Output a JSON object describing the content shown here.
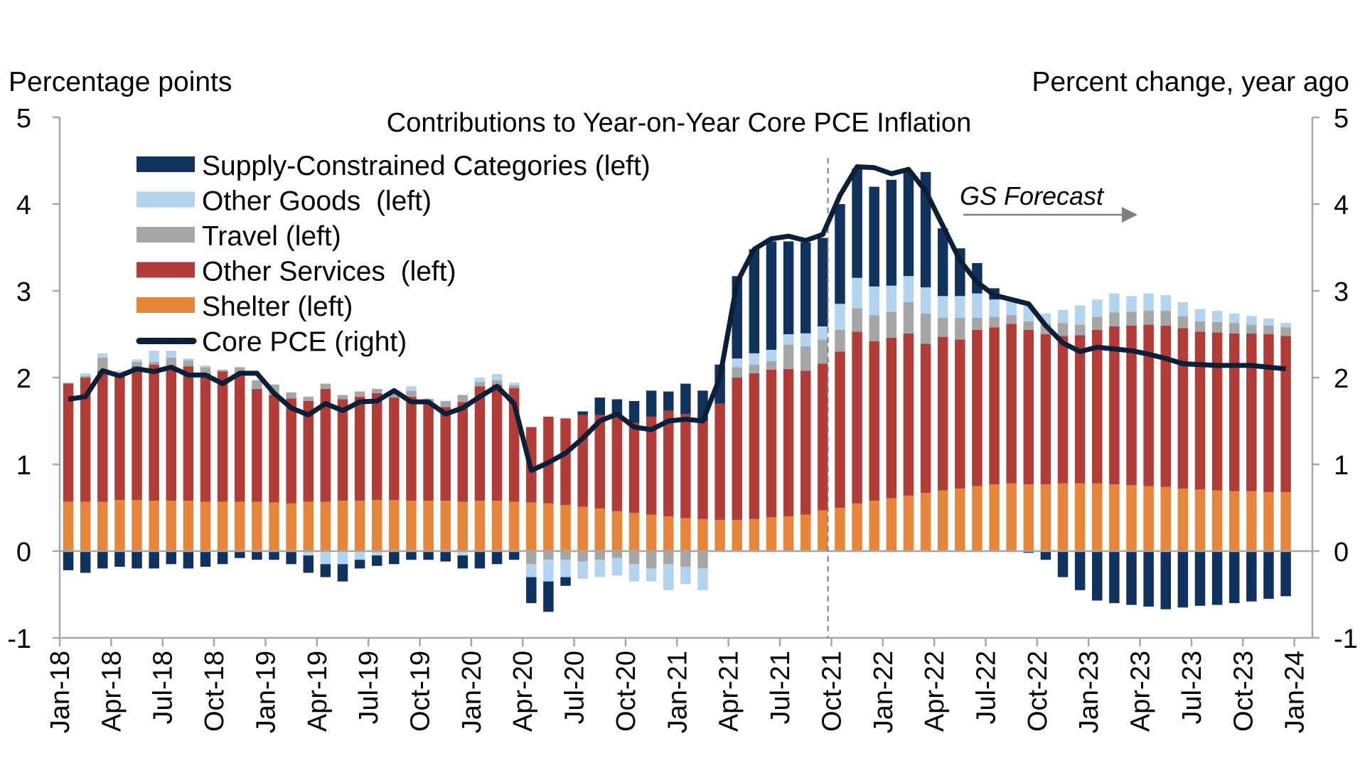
{
  "chart_data": {
    "type": "bar",
    "title": "Contributions to Year-on-Year Core PCE Inflation",
    "ylabel_left": "Percentage points",
    "ylabel_right": "Percent change, year ago",
    "ylim": [
      -1,
      5
    ],
    "yticks": [
      -1,
      0,
      1,
      2,
      3,
      4,
      5
    ],
    "ytick_labels": [
      "-1",
      "0",
      "1",
      "2",
      "3",
      "4",
      "5"
    ],
    "xtick_labels": [
      "Jan-18",
      "Apr-18",
      "Jul-18",
      "Oct-18",
      "Jan-19",
      "Apr-19",
      "Jul-19",
      "Oct-19",
      "Jan-20",
      "Apr-20",
      "Jul-20",
      "Oct-20",
      "Jan-21",
      "Apr-21",
      "Jul-21",
      "Oct-21",
      "Jan-22",
      "Apr-22",
      "Jul-22",
      "Oct-22",
      "Jan-23",
      "Apr-23",
      "Jul-23",
      "Oct-23",
      "Jan-24"
    ],
    "x_start": "Jan-18",
    "x_frequency": "monthly",
    "forecast_label": "GS Forecast",
    "forecast_start": "Oct-21",
    "legend_position": "top-left",
    "grid": false,
    "series": [
      {
        "name": "Supply-Constrained Categories (left)",
        "type": "bar",
        "color": "#12325e",
        "values": [
          -0.22,
          -0.25,
          -0.2,
          -0.18,
          -0.2,
          -0.2,
          -0.15,
          -0.2,
          -0.18,
          -0.15,
          -0.08,
          -0.1,
          -0.1,
          -0.15,
          -0.2,
          -0.15,
          -0.2,
          -0.1,
          -0.12,
          -0.15,
          -0.1,
          -0.1,
          -0.12,
          -0.15,
          -0.2,
          -0.15,
          -0.1,
          -0.3,
          -0.35,
          -0.1,
          0.04,
          0.2,
          0.18,
          0.25,
          0.3,
          0.22,
          0.35,
          0.35,
          0.45,
          0.95,
          1.2,
          1.25,
          1.07,
          1.05,
          1.02,
          1.15,
          1.26,
          1.15,
          1.22,
          1.2,
          1.33,
          0.78,
          0.55,
          0.35,
          0.13,
          0.0,
          -0.02,
          -0.1,
          -0.3,
          -0.45,
          -0.57,
          -0.6,
          -0.62,
          -0.64,
          -0.67,
          -0.65,
          -0.63,
          -0.62,
          -0.6,
          -0.58,
          -0.55,
          -0.52
        ]
      },
      {
        "name": "Other Goods  (left)",
        "type": "bar",
        "color": "#b3d4ee",
        "values": [
          0,
          0.03,
          0.05,
          0.02,
          0.03,
          0.13,
          0.08,
          0.02,
          0.02,
          0,
          0,
          0,
          0,
          0,
          -0.05,
          -0.15,
          -0.15,
          -0.1,
          -0.05,
          0,
          0.05,
          0.01,
          0,
          -0.05,
          0.05,
          0.07,
          0.03,
          -0.15,
          -0.25,
          -0.2,
          -0.2,
          -0.2,
          -0.2,
          -0.2,
          -0.15,
          -0.3,
          -0.2,
          -0.25,
          0,
          0.1,
          0.13,
          0.13,
          0.12,
          0.15,
          0.15,
          0.3,
          0.35,
          0.33,
          0.3,
          0.3,
          0.3,
          0.25,
          0.25,
          0.28,
          0.2,
          0.18,
          0.18,
          0.12,
          0.15,
          0.22,
          0.2,
          0.22,
          0.18,
          0.2,
          0.18,
          0.16,
          0.14,
          0.13,
          0.11,
          0.1,
          0.08,
          0.05
        ]
      },
      {
        "name": "Travel (left)",
        "type": "bar",
        "color": "#a6a6a6",
        "values": [
          0.01,
          0.02,
          0.15,
          0.03,
          0.05,
          0.03,
          0.1,
          0.07,
          0.07,
          0.02,
          0.07,
          0.1,
          0.12,
          0.07,
          0.05,
          0.06,
          0.05,
          0.06,
          0.05,
          0.05,
          0.07,
          0.05,
          0.07,
          0.08,
          0.05,
          0.05,
          0.03,
          -0.15,
          -0.1,
          -0.1,
          -0.12,
          -0.1,
          -0.08,
          -0.15,
          -0.2,
          -0.15,
          -0.18,
          -0.2,
          0,
          0.12,
          0.1,
          0.1,
          0.28,
          0.28,
          0.28,
          0.25,
          0.27,
          0.3,
          0.3,
          0.36,
          0.35,
          0.22,
          0.25,
          0.14,
          0.12,
          0.1,
          0.1,
          0.12,
          0.15,
          0.12,
          0.15,
          0.16,
          0.16,
          0.16,
          0.17,
          0.14,
          0.12,
          0.12,
          0.12,
          0.1,
          0.1,
          0.1
        ]
      },
      {
        "name": "Other Services  (left)",
        "type": "bar",
        "color": "#b13c38",
        "values": [
          1.36,
          1.43,
          1.51,
          1.44,
          1.54,
          1.57,
          1.55,
          1.55,
          1.48,
          1.5,
          1.48,
          1.3,
          1.24,
          1.21,
          1.16,
          1.3,
          1.17,
          1.2,
          1.23,
          1.18,
          1.2,
          1.12,
          1.08,
          1.15,
          1.32,
          1.34,
          1.31,
          0.87,
          1.0,
          1.0,
          1.06,
          1.08,
          1.11,
          1.04,
          1.13,
          1.22,
          1.2,
          1.13,
          1.34,
          1.64,
          1.68,
          1.7,
          1.7,
          1.66,
          1.69,
          1.8,
          1.98,
          1.84,
          1.85,
          1.87,
          1.72,
          1.77,
          1.72,
          1.8,
          1.81,
          1.84,
          1.78,
          1.73,
          1.7,
          1.71,
          1.77,
          1.82,
          1.84,
          1.86,
          1.86,
          1.85,
          1.82,
          1.82,
          1.82,
          1.82,
          1.82,
          1.8
        ]
      },
      {
        "name": "Shelter (left)",
        "type": "bar",
        "color": "#e6853c",
        "values": [
          0.57,
          0.57,
          0.57,
          0.59,
          0.59,
          0.58,
          0.58,
          0.58,
          0.57,
          0.57,
          0.57,
          0.57,
          0.56,
          0.55,
          0.57,
          0.57,
          0.58,
          0.58,
          0.59,
          0.59,
          0.58,
          0.58,
          0.58,
          0.57,
          0.58,
          0.58,
          0.57,
          0.56,
          0.55,
          0.53,
          0.51,
          0.49,
          0.46,
          0.44,
          0.42,
          0.4,
          0.38,
          0.37,
          0.36,
          0.36,
          0.37,
          0.39,
          0.4,
          0.42,
          0.47,
          0.5,
          0.55,
          0.58,
          0.61,
          0.64,
          0.67,
          0.7,
          0.72,
          0.75,
          0.77,
          0.78,
          0.77,
          0.77,
          0.78,
          0.78,
          0.78,
          0.77,
          0.76,
          0.75,
          0.74,
          0.72,
          0.71,
          0.7,
          0.69,
          0.69,
          0.68,
          0.68
        ]
      },
      {
        "name": "Core PCE (right)",
        "type": "line",
        "color": "#0b2038",
        "values": [
          1.75,
          1.78,
          2.08,
          2.02,
          2.1,
          2.07,
          2.12,
          2.03,
          2.03,
          1.93,
          2.05,
          2.05,
          1.82,
          1.65,
          1.57,
          1.7,
          1.62,
          1.72,
          1.73,
          1.85,
          1.72,
          1.72,
          1.58,
          1.65,
          1.78,
          1.9,
          1.7,
          0.93,
          1.02,
          1.13,
          1.3,
          1.5,
          1.58,
          1.43,
          1.4,
          1.5,
          1.52,
          1.5,
          2.0,
          3.1,
          3.48,
          3.6,
          3.63,
          3.58,
          3.65,
          4.1,
          4.43,
          4.42,
          4.35,
          4.4,
          4.15,
          3.75,
          3.35,
          3.1,
          2.95,
          2.9,
          2.85,
          2.6,
          2.4,
          2.3,
          2.35,
          2.33,
          2.31,
          2.27,
          2.22,
          2.16,
          2.15,
          2.14,
          2.14,
          2.14,
          2.12,
          2.1
        ]
      }
    ]
  }
}
